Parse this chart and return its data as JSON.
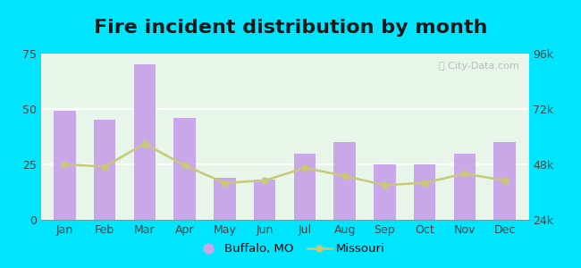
{
  "title": "Fire incident distribution by month",
  "months": [
    "Jan",
    "Feb",
    "Mar",
    "Apr",
    "May",
    "Jun",
    "Jul",
    "Aug",
    "Sep",
    "Oct",
    "Nov",
    "Dec"
  ],
  "buffalo_values": [
    49,
    45,
    70,
    46,
    19,
    18,
    30,
    35,
    25,
    25,
    30,
    35
  ],
  "missouri_values": [
    48000,
    47000,
    57000,
    47500,
    40000,
    41000,
    46500,
    43000,
    39000,
    40000,
    44000,
    41000
  ],
  "bar_color": "#c8a8e8",
  "line_color": "#c8c87a",
  "line_marker": "o",
  "bg_outer": "#00e5ff",
  "bg_plot_color": "#e8f5e9",
  "left_ylim": [
    0,
    75
  ],
  "left_yticks": [
    0,
    25,
    50,
    75
  ],
  "right_ylim": [
    24000,
    96000
  ],
  "right_yticks": [
    24000,
    48000,
    72000,
    96000
  ],
  "right_yticklabels": [
    "24k",
    "48k",
    "72k",
    "96k"
  ],
  "title_fontsize": 16,
  "tick_fontsize": 9,
  "legend_buffalo": "Buffalo, MO",
  "legend_missouri": "Missouri"
}
